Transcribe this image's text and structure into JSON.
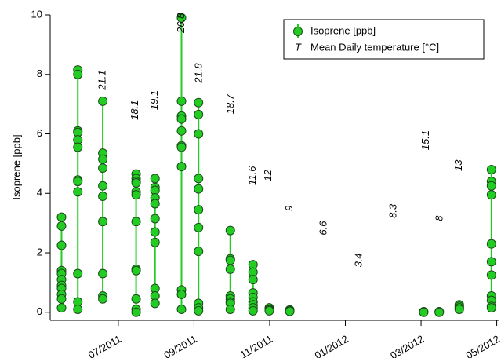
{
  "chart_data": {
    "type": "scatter",
    "ylabel": "Isoprene [ppb]",
    "xlim": [
      4.2,
      16.05
    ],
    "xticks": [
      {
        "value": 6,
        "label": "07/2011"
      },
      {
        "value": 8,
        "label": "09/2011"
      },
      {
        "value": 10,
        "label": "11/2011"
      },
      {
        "value": 12,
        "label": "01/2012"
      },
      {
        "value": 14,
        "label": "03/2012"
      },
      {
        "value": 16,
        "label": "05/2012"
      }
    ],
    "ylim": [
      -0.27,
      10
    ],
    "yticks": [
      0,
      2,
      4,
      6,
      8,
      10
    ],
    "y2lim": [
      -1.9,
      28.6
    ],
    "legend": "upper right",
    "series": [
      {
        "name": "Isoprene [ppb]",
        "color": "#22cc22",
        "marker": "circle",
        "x": [
          4.5,
          4.5,
          4.5,
          4.5,
          4.5,
          4.5,
          4.5,
          4.5,
          4.5,
          4.5,
          4.5,
          null,
          4.93,
          4.93,
          4.93,
          4.93,
          4.93,
          4.93,
          4.93,
          4.93,
          4.93,
          4.93,
          4.93,
          4.93,
          null,
          5.59,
          5.59,
          5.59,
          5.59,
          5.59,
          5.59,
          5.59,
          5.59,
          5.59,
          5.59,
          null,
          6.47,
          6.47,
          6.47,
          6.47,
          6.47,
          6.47,
          6.47,
          6.47,
          6.47,
          6.47,
          6.47,
          6.47,
          null,
          6.97,
          6.97,
          6.97,
          6.97,
          6.97,
          6.97,
          6.97,
          6.97,
          6.97,
          6.97,
          6.97,
          null,
          7.67,
          7.67,
          7.67,
          7.67,
          7.67,
          7.67,
          7.67,
          7.67,
          7.67,
          7.67,
          7.67,
          null,
          8.12,
          8.12,
          8.12,
          8.12,
          8.12,
          8.12,
          8.12,
          8.12,
          8.12,
          8.12,
          8.12,
          null,
          8.96,
          8.96,
          8.96,
          8.96,
          8.96,
          8.96,
          8.96,
          8.96,
          8.96,
          null,
          9.56,
          9.56,
          9.56,
          9.56,
          9.56,
          9.56,
          9.56,
          9.56,
          9.56,
          null,
          9.99,
          9.99,
          9.99,
          9.99,
          null,
          10.53,
          10.53,
          10.53,
          null,
          14.07,
          14.07,
          null,
          14.48,
          14.48,
          null,
          15.01,
          15.01,
          15.01,
          15.01,
          null,
          15.86,
          15.86,
          15.86,
          15.86,
          15.86,
          15.86,
          15.86,
          15.86,
          15.86,
          15.86,
          15.86
        ],
        "values": [
          3.2,
          2.9,
          2.25,
          1.4,
          1.3,
          1.1,
          0.9,
          0.8,
          0.6,
          0.45,
          0.15,
          null,
          8.15,
          8.0,
          6.1,
          6.05,
          5.8,
          5.55,
          4.45,
          4.4,
          4.05,
          1.3,
          0.35,
          0.1,
          null,
          7.1,
          5.35,
          5.15,
          4.85,
          4.25,
          3.9,
          3.05,
          1.3,
          0.55,
          0.45,
          null,
          4.65,
          4.5,
          4.4,
          4.35,
          4.05,
          3.95,
          3.05,
          1.45,
          1.4,
          0.45,
          0.1,
          0.0,
          null,
          4.5,
          4.2,
          4.1,
          3.85,
          3.65,
          3.15,
          2.7,
          2.35,
          0.8,
          0.55,
          0.3,
          null,
          9.9,
          7.1,
          6.6,
          6.5,
          6.1,
          5.6,
          5.55,
          4.9,
          0.75,
          0.6,
          0.1,
          null,
          7.05,
          6.65,
          6.0,
          4.5,
          4.15,
          3.45,
          2.85,
          2.05,
          0.3,
          0.15,
          0.05,
          null,
          2.75,
          1.8,
          1.75,
          1.45,
          0.55,
          0.45,
          0.35,
          0.3,
          0.1,
          null,
          1.6,
          1.35,
          1.1,
          0.65,
          0.5,
          0.35,
          0.25,
          0.15,
          0.05,
          null,
          0.15,
          0.1,
          0.08,
          0.05,
          null,
          0.08,
          0.05,
          0.03,
          null,
          0.02,
          0.0,
          null,
          0.02,
          0.0,
          null,
          0.25,
          0.2,
          0.15,
          0.1,
          null,
          4.8,
          4.4,
          4.25,
          3.95,
          2.3,
          1.7,
          1.25,
          0.55,
          0.4,
          0.2,
          0.15
        ]
      },
      {
        "name": "Mean Daily temperature [°C]",
        "color": "#000000",
        "marker": "T",
        "axis": "y2",
        "x": [
          5.59,
          6.45,
          6.97,
          7.67,
          8.14,
          8.98,
          9.56,
          9.97,
          10.53,
          11.43,
          12.36,
          13.28,
          14.13,
          14.5,
          15.01
        ],
        "values": [
          21.1,
          18.1,
          19.1,
          26.8,
          21.8,
          18.7,
          11.6,
          12,
          9,
          6.6,
          3.4,
          8.3,
          15.1,
          8,
          13
        ]
      }
    ]
  }
}
